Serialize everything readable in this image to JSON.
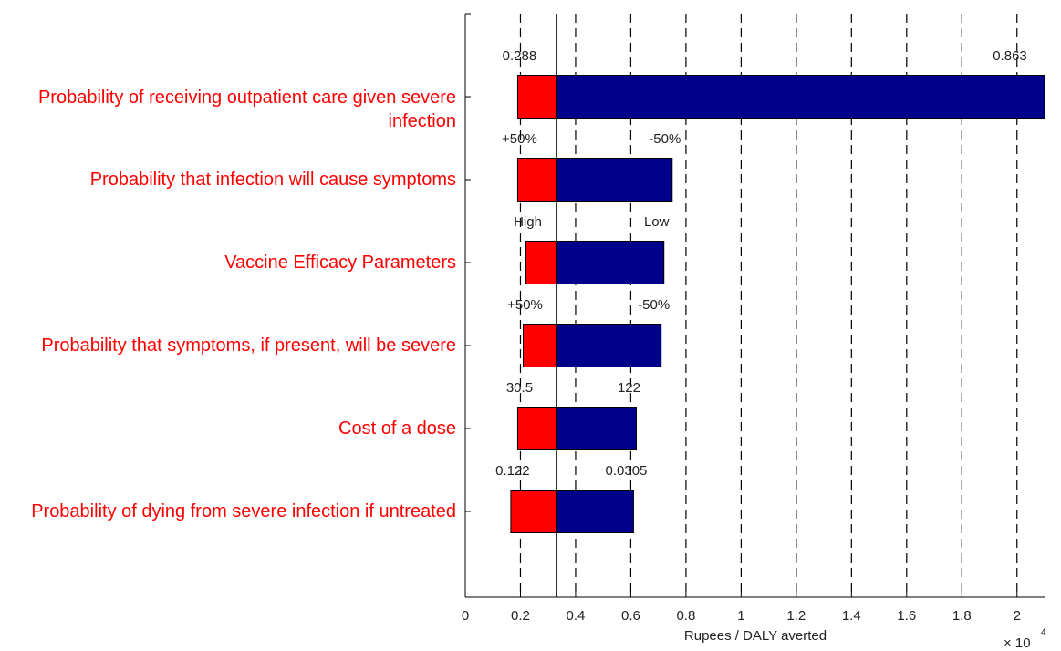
{
  "chart_data": {
    "type": "tornado",
    "categories": [
      "Probability of receiving outpatient care given severe infection",
      "Probability that infection will cause symptoms",
      "Vaccine Efficacy Parameters",
      "Probability that symptoms, if present, will be severe",
      "Cost of a dose",
      "Probability of dying from severe infection if untreated"
    ],
    "base": 0.33,
    "series": [
      {
        "color": "#ff0000",
        "values": [
          0.19,
          0.19,
          0.22,
          0.21,
          0.19,
          0.165
        ]
      },
      {
        "color": "#00008b",
        "values": [
          2.1,
          0.75,
          0.72,
          0.71,
          0.62,
          0.61
        ]
      }
    ],
    "low_labels": [
      "0.288",
      "+50%",
      "High",
      "+50%",
      "30.5",
      "0.122"
    ],
    "high_labels": [
      "0.863",
      "-50%",
      "Low",
      "-50%",
      "122",
      "0.0305"
    ],
    "xlabel": "Rupees / DALY averted",
    "x_scale_label": "× 10",
    "x_scale_exponent": "4",
    "xlim": [
      0,
      2.1
    ],
    "xticks": [
      0,
      0.2,
      0.4,
      0.6,
      0.8,
      1,
      1.2,
      1.4,
      1.6,
      1.8,
      2
    ],
    "grid": true
  }
}
